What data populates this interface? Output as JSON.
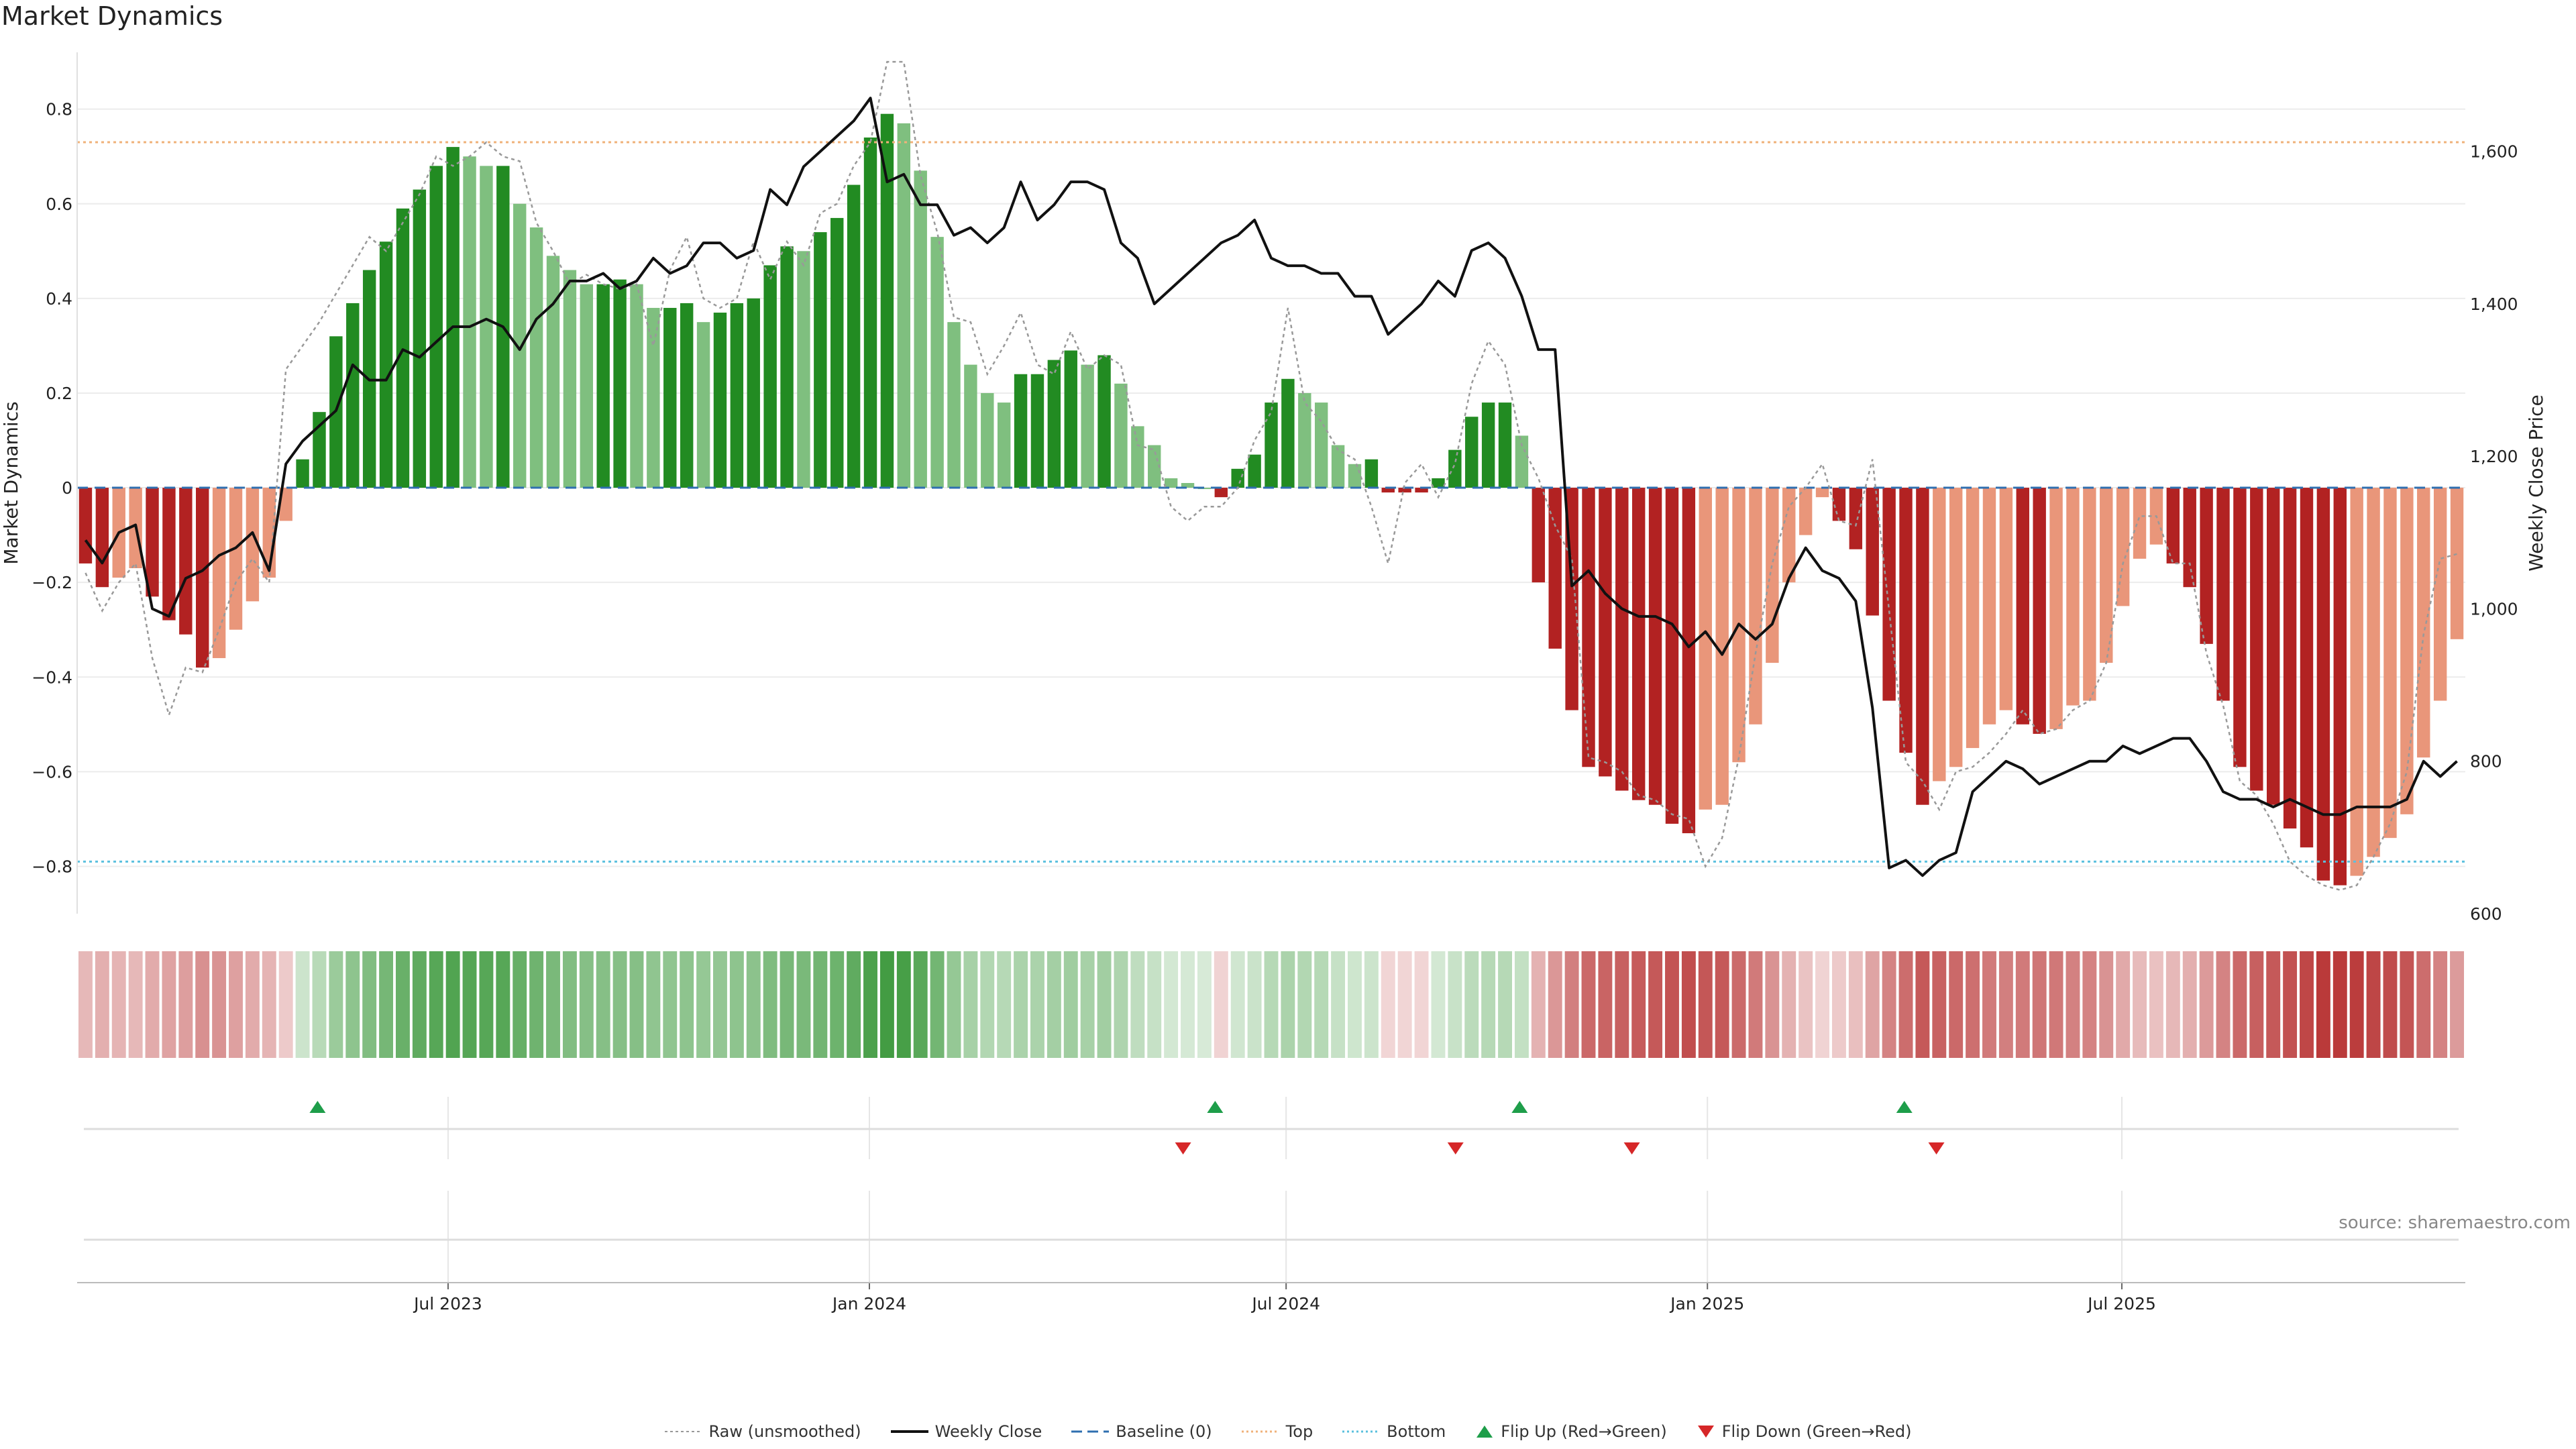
{
  "title": "Market Dynamics",
  "source_note": "source: sharemaestro.com",
  "colors": {
    "strong_green": "#228B22",
    "light_green": "#7FBF7F",
    "strong_red": "#B22222",
    "light_red": "#E9967A",
    "weekly_close": "#111111",
    "raw": "#999999",
    "baseline": "#2F6FB0",
    "top": "#F0B27A",
    "bottom": "#5BC0DE",
    "flip_up": "#1E9E4A",
    "flip_down": "#D62728"
  },
  "legend": {
    "raw": "Raw (unsmoothed)",
    "weekly_close": "Weekly Close",
    "baseline": "Baseline (0)",
    "top": "Top",
    "bottom": "Bottom",
    "flip_up": "Flip Up (Red→Green)",
    "flip_down": "Flip Down (Green→Red)"
  },
  "chart_data": {
    "type": "bar",
    "title": "Market Dynamics",
    "ylabel": "Market Dynamics",
    "y2label": "Weekly Close Price",
    "ylim": [
      -0.9,
      0.92
    ],
    "y2lim": [
      600,
      1730
    ],
    "yticks": [
      0.8,
      0.6,
      0.4,
      0.2,
      0,
      -0.2,
      -0.4,
      -0.6,
      -0.8
    ],
    "ytick_labels": [
      "0.8",
      "0.6",
      "0.4",
      "0.2",
      "0",
      "−0.2",
      "−0.4",
      "−0.6",
      "−0.8"
    ],
    "y2ticks": [
      600,
      800,
      1000,
      1200,
      1400,
      1600
    ],
    "y2tick_labels": [
      "600",
      "800",
      "1,000",
      "1,200",
      "1,400",
      "1,600"
    ],
    "x_start": "2023-01-20",
    "x_end": "2025-11-28",
    "xticks": [
      "2023-07-01",
      "2024-01-01",
      "2024-07-01",
      "2025-01-01",
      "2025-07-01"
    ],
    "xtick_labels": [
      "Jul 2023",
      "Jan 2024",
      "Jul 2024",
      "Jan 2025",
      "Jul 2025"
    ],
    "top_level": 0.73,
    "bottom_level": -0.79,
    "baseline": 0,
    "grid": true,
    "legend_position": "bottom",
    "series": [
      {
        "name": "Market Dynamics",
        "type": "bar",
        "values": [
          -0.16,
          -0.21,
          -0.19,
          -0.17,
          -0.23,
          -0.28,
          -0.31,
          -0.38,
          -0.36,
          -0.3,
          -0.24,
          -0.19,
          -0.07,
          0.06,
          0.16,
          0.32,
          0.39,
          0.46,
          0.52,
          0.59,
          0.63,
          0.68,
          0.72,
          0.7,
          0.68,
          0.68,
          0.6,
          0.55,
          0.49,
          0.46,
          0.43,
          0.43,
          0.44,
          0.43,
          0.38,
          0.38,
          0.39,
          0.35,
          0.37,
          0.39,
          0.4,
          0.47,
          0.51,
          0.5,
          0.54,
          0.57,
          0.64,
          0.74,
          0.79,
          0.77,
          0.67,
          0.53,
          0.35,
          0.26,
          0.2,
          0.18,
          0.24,
          0.24,
          0.27,
          0.29,
          0.26,
          0.28,
          0.22,
          0.13,
          0.09,
          0.02,
          0.01,
          0.0,
          -0.02,
          0.04,
          0.07,
          0.18,
          0.23,
          0.2,
          0.18,
          0.09,
          0.05,
          0.06,
          -0.01,
          -0.01,
          -0.01,
          0.02,
          0.08,
          0.15,
          0.18,
          0.18,
          0.11,
          -0.2,
          -0.34,
          -0.47,
          -0.59,
          -0.61,
          -0.64,
          -0.66,
          -0.67,
          -0.71,
          -0.73,
          -0.68,
          -0.67,
          -0.58,
          -0.5,
          -0.37,
          -0.2,
          -0.1,
          -0.02,
          -0.07,
          -0.13,
          -0.27,
          -0.45,
          -0.56,
          -0.67,
          -0.62,
          -0.59,
          -0.55,
          -0.5,
          -0.47,
          -0.5,
          -0.52,
          -0.51,
          -0.46,
          -0.45,
          -0.37,
          -0.25,
          -0.15,
          -0.12,
          -0.16,
          -0.21,
          -0.33,
          -0.45,
          -0.59,
          -0.64,
          -0.67,
          -0.72,
          -0.76,
          -0.83,
          -0.84,
          -0.82,
          -0.78,
          -0.74,
          -0.69,
          -0.57,
          -0.45,
          -0.32
        ]
      },
      {
        "name": "Raw (unsmoothed)",
        "type": "line",
        "values": [
          -0.18,
          -0.26,
          -0.2,
          -0.16,
          -0.36,
          -0.48,
          -0.38,
          -0.39,
          -0.3,
          -0.2,
          -0.15,
          -0.2,
          0.25,
          0.3,
          0.35,
          0.41,
          0.47,
          0.53,
          0.5,
          0.56,
          0.62,
          0.7,
          0.68,
          0.7,
          0.73,
          0.7,
          0.69,
          0.56,
          0.5,
          0.43,
          0.45,
          0.43,
          0.42,
          0.43,
          0.3,
          0.46,
          0.53,
          0.4,
          0.38,
          0.4,
          0.52,
          0.44,
          0.52,
          0.47,
          0.58,
          0.6,
          0.68,
          0.73,
          0.9,
          0.9,
          0.66,
          0.54,
          0.36,
          0.35,
          0.24,
          0.3,
          0.37,
          0.26,
          0.24,
          0.33,
          0.25,
          0.28,
          0.26,
          0.09,
          0.08,
          -0.04,
          -0.07,
          -0.04,
          -0.04,
          0.0,
          0.1,
          0.16,
          0.38,
          0.18,
          0.14,
          0.08,
          0.06,
          -0.04,
          -0.16,
          0.01,
          0.05,
          -0.02,
          0.05,
          0.22,
          0.31,
          0.26,
          0.09,
          0.02,
          -0.08,
          -0.15,
          -0.57,
          -0.58,
          -0.6,
          -0.65,
          -0.66,
          -0.69,
          -0.7,
          -0.8,
          -0.74,
          -0.57,
          -0.35,
          -0.16,
          -0.04,
          0.0,
          0.05,
          -0.07,
          -0.08,
          0.06,
          -0.26,
          -0.58,
          -0.62,
          -0.68,
          -0.6,
          -0.59,
          -0.56,
          -0.52,
          -0.47,
          -0.52,
          -0.51,
          -0.47,
          -0.45,
          -0.37,
          -0.16,
          -0.06,
          -0.06,
          -0.16,
          -0.16,
          -0.35,
          -0.46,
          -0.62,
          -0.65,
          -0.71,
          -0.79,
          -0.82,
          -0.84,
          -0.85,
          -0.84,
          -0.78,
          -0.71,
          -0.6,
          -0.31,
          -0.15,
          -0.14
        ]
      },
      {
        "name": "Weekly Close",
        "type": "line",
        "axis": "right",
        "values": [
          1090,
          1060,
          1100,
          1110,
          1000,
          990,
          1040,
          1050,
          1070,
          1080,
          1100,
          1050,
          1190,
          1220,
          1240,
          1260,
          1320,
          1300,
          1300,
          1340,
          1330,
          1350,
          1370,
          1370,
          1380,
          1370,
          1340,
          1380,
          1400,
          1430,
          1430,
          1440,
          1420,
          1430,
          1460,
          1440,
          1450,
          1480,
          1480,
          1460,
          1470,
          1550,
          1530,
          1580,
          1600,
          1620,
          1640,
          1670,
          1560,
          1570,
          1530,
          1530,
          1490,
          1500,
          1480,
          1500,
          1560,
          1510,
          1530,
          1560,
          1560,
          1550,
          1480,
          1460,
          1400,
          1420,
          1440,
          1460,
          1480,
          1490,
          1510,
          1460,
          1450,
          1450,
          1440,
          1440,
          1410,
          1410,
          1360,
          1380,
          1400,
          1430,
          1410,
          1470,
          1480,
          1460,
          1410,
          1340,
          1340,
          1030,
          1050,
          1020,
          1000,
          990,
          990,
          980,
          950,
          970,
          940,
          980,
          960,
          980,
          1040,
          1080,
          1050,
          1040,
          1010,
          870,
          660,
          670,
          650,
          670,
          680,
          760,
          780,
          800,
          790,
          770,
          780,
          790,
          800,
          800,
          820,
          810,
          820,
          830,
          830,
          800,
          760,
          750,
          750,
          740,
          750,
          740,
          730,
          730,
          740,
          740,
          740,
          750,
          800,
          780,
          800
        ]
      }
    ],
    "heat_strip": [
      -0.16,
      -0.21,
      -0.19,
      -0.17,
      -0.23,
      -0.28,
      -0.31,
      -0.38,
      -0.36,
      -0.3,
      -0.24,
      -0.19,
      -0.07,
      0.06,
      0.16,
      0.32,
      0.39,
      0.46,
      0.52,
      0.59,
      0.63,
      0.68,
      0.72,
      0.7,
      0.68,
      0.68,
      0.6,
      0.55,
      0.49,
      0.46,
      0.43,
      0.43,
      0.44,
      0.43,
      0.38,
      0.38,
      0.39,
      0.35,
      0.37,
      0.39,
      0.4,
      0.47,
      0.51,
      0.5,
      0.54,
      0.57,
      0.64,
      0.74,
      0.79,
      0.77,
      0.67,
      0.53,
      0.35,
      0.26,
      0.2,
      0.18,
      0.24,
      0.24,
      0.27,
      0.29,
      0.26,
      0.28,
      0.22,
      0.13,
      0.09,
      0.02,
      0.01,
      0.0,
      -0.02,
      0.04,
      0.07,
      0.18,
      0.23,
      0.2,
      0.18,
      0.09,
      0.05,
      0.06,
      -0.01,
      -0.01,
      -0.01,
      0.02,
      0.08,
      0.15,
      0.18,
      0.18,
      0.11,
      -0.2,
      -0.34,
      -0.47,
      -0.59,
      -0.61,
      -0.64,
      -0.66,
      -0.67,
      -0.71,
      -0.73,
      -0.68,
      -0.67,
      -0.58,
      -0.5,
      -0.37,
      -0.2,
      -0.1,
      -0.02,
      -0.07,
      -0.13,
      -0.27,
      -0.45,
      -0.56,
      -0.67,
      -0.62,
      -0.59,
      -0.55,
      -0.5,
      -0.47,
      -0.5,
      -0.52,
      -0.51,
      -0.46,
      -0.45,
      -0.37,
      -0.25,
      -0.15,
      -0.12,
      -0.16,
      -0.21,
      -0.33,
      -0.45,
      -0.59,
      -0.64,
      -0.67,
      -0.72,
      -0.76,
      -0.83,
      -0.84,
      -0.82,
      -0.78,
      -0.74,
      -0.69,
      -0.57,
      -0.45,
      -0.32
    ],
    "flip_up_dates": [
      "2023-05-05",
      "2024-05-31",
      "2024-10-11",
      "2025-03-28"
    ],
    "flip_down_dates": [
      "2024-05-17",
      "2024-09-13",
      "2024-11-29",
      "2025-04-11"
    ]
  }
}
